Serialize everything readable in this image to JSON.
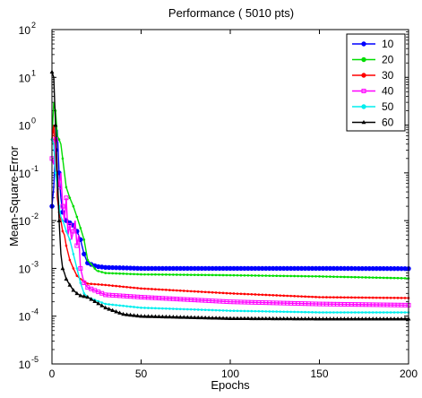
{
  "chart_data": {
    "type": "line",
    "title": "Performance ( 5010 pts)",
    "xlabel": "Epochs",
    "ylabel": "Mean-Square-Error",
    "xlim": [
      0,
      200
    ],
    "ylim": [
      1e-05,
      100
    ],
    "yscale": "log",
    "grid": false,
    "legend_position": "top-right",
    "x_ticks": [
      {
        "value": 0,
        "label": "0"
      },
      {
        "value": 50,
        "label": "50"
      },
      {
        "value": 100,
        "label": "100"
      },
      {
        "value": 150,
        "label": "150"
      },
      {
        "value": 200,
        "label": "200"
      }
    ],
    "y_ticks": [
      {
        "exp": -5,
        "label_base": "10",
        "label_exp": "-5"
      },
      {
        "exp": -4,
        "label_base": "10",
        "label_exp": "-4"
      },
      {
        "exp": -3,
        "label_base": "10",
        "label_exp": "-3"
      },
      {
        "exp": -2,
        "label_base": "10",
        "label_exp": "-2"
      },
      {
        "exp": -1,
        "label_base": "10",
        "label_exp": "-1"
      },
      {
        "exp": 0,
        "label_base": "10",
        "label_exp": "0"
      },
      {
        "exp": 1,
        "label_base": "10",
        "label_exp": "1"
      },
      {
        "exp": 2,
        "label_base": "10",
        "label_exp": "2"
      }
    ],
    "series": [
      {
        "name": "10",
        "color": "#0000ff",
        "marker": "circle",
        "points": [
          [
            0,
            0.02
          ],
          [
            1,
            0.05
          ],
          [
            2,
            0.3
          ],
          [
            3,
            0.8
          ],
          [
            4,
            0.1
          ],
          [
            5,
            0.03
          ],
          [
            6,
            0.015
          ],
          [
            8,
            0.01
          ],
          [
            10,
            0.009
          ],
          [
            12,
            0.008
          ],
          [
            14,
            0.006
          ],
          [
            16,
            0.004
          ],
          [
            18,
            0.002
          ],
          [
            20,
            0.0013
          ],
          [
            25,
            0.0011
          ],
          [
            30,
            0.00105
          ],
          [
            50,
            0.001
          ],
          [
            100,
            0.001
          ],
          [
            150,
            0.001
          ],
          [
            200,
            0.00099
          ]
        ]
      },
      {
        "name": "20",
        "color": "#00dd00",
        "marker": "dot",
        "points": [
          [
            0,
            0.5
          ],
          [
            1,
            3
          ],
          [
            2,
            2
          ],
          [
            3,
            0.6
          ],
          [
            4,
            0.5
          ],
          [
            5,
            0.4
          ],
          [
            6,
            0.2
          ],
          [
            7,
            0.1
          ],
          [
            8,
            0.05
          ],
          [
            10,
            0.03
          ],
          [
            12,
            0.02
          ],
          [
            14,
            0.012
          ],
          [
            16,
            0.007
          ],
          [
            18,
            0.004
          ],
          [
            20,
            0.0015
          ],
          [
            25,
            0.0009
          ],
          [
            30,
            0.0008
          ],
          [
            50,
            0.00075
          ],
          [
            100,
            0.00072
          ],
          [
            150,
            0.00068
          ],
          [
            200,
            0.00062
          ]
        ]
      },
      {
        "name": "30",
        "color": "#ff0000",
        "marker": "dot",
        "points": [
          [
            0,
            0.5
          ],
          [
            1,
            1
          ],
          [
            2,
            0.2
          ],
          [
            3,
            0.03
          ],
          [
            4,
            0.015
          ],
          [
            5,
            0.01
          ],
          [
            6,
            0.006
          ],
          [
            7,
            0.005
          ],
          [
            8,
            0.003
          ],
          [
            10,
            0.0015
          ],
          [
            12,
            0.001
          ],
          [
            14,
            0.0007
          ],
          [
            16,
            0.0006
          ],
          [
            20,
            0.00048
          ],
          [
            30,
            0.00045
          ],
          [
            50,
            0.00038
          ],
          [
            100,
            0.0003
          ],
          [
            150,
            0.00025
          ],
          [
            200,
            0.00024
          ]
        ]
      },
      {
        "name": "40",
        "color": "#ff00ff",
        "marker": "square",
        "points": [
          [
            0,
            0.2
          ],
          [
            1,
            0.15
          ],
          [
            2,
            0.5
          ],
          [
            3,
            0.1
          ],
          [
            4,
            0.05
          ],
          [
            5,
            0.1
          ],
          [
            6,
            0.02
          ],
          [
            7,
            0.01
          ],
          [
            8,
            0.03
          ],
          [
            9,
            0.005
          ],
          [
            10,
            0.008
          ],
          [
            11,
            0.004
          ],
          [
            12,
            0.006
          ],
          [
            13,
            0.01
          ],
          [
            14,
            0.003
          ],
          [
            15,
            0.005
          ],
          [
            16,
            0.001
          ],
          [
            18,
            0.0005
          ],
          [
            20,
            0.0004
          ],
          [
            30,
            0.00028
          ],
          [
            50,
            0.00025
          ],
          [
            100,
            0.0002
          ],
          [
            150,
            0.00018
          ],
          [
            200,
            0.00017
          ]
        ]
      },
      {
        "name": "50",
        "color": "#00eeee",
        "marker": "dot",
        "points": [
          [
            0,
            0.5
          ],
          [
            1,
            0.4
          ],
          [
            2,
            0.1
          ],
          [
            3,
            0.05
          ],
          [
            4,
            0.02
          ],
          [
            5,
            0.012
          ],
          [
            6,
            0.01
          ],
          [
            7,
            0.008
          ],
          [
            8,
            0.006
          ],
          [
            10,
            0.004
          ],
          [
            12,
            0.002
          ],
          [
            14,
            0.001
          ],
          [
            16,
            0.0005
          ],
          [
            18,
            0.0003
          ],
          [
            20,
            0.00025
          ],
          [
            30,
            0.00018
          ],
          [
            50,
            0.00015
          ],
          [
            100,
            0.00013
          ],
          [
            150,
            0.00012
          ],
          [
            200,
            0.00012
          ]
        ]
      },
      {
        "name": "60",
        "color": "#000000",
        "marker": "triangle",
        "points": [
          [
            0,
            13
          ],
          [
            1,
            10
          ],
          [
            2,
            1
          ],
          [
            3,
            0.1
          ],
          [
            4,
            0.01
          ],
          [
            5,
            0.002
          ],
          [
            6,
            0.001
          ],
          [
            7,
            0.0008
          ],
          [
            8,
            0.0006
          ],
          [
            10,
            0.00045
          ],
          [
            12,
            0.00035
          ],
          [
            14,
            0.0003
          ],
          [
            16,
            0.00027
          ],
          [
            20,
            0.00025
          ],
          [
            30,
            0.00015
          ],
          [
            40,
            0.00011
          ],
          [
            50,
            0.0001
          ],
          [
            100,
            9e-05
          ],
          [
            150,
            8.8e-05
          ],
          [
            200,
            8.8e-05
          ]
        ]
      }
    ]
  }
}
